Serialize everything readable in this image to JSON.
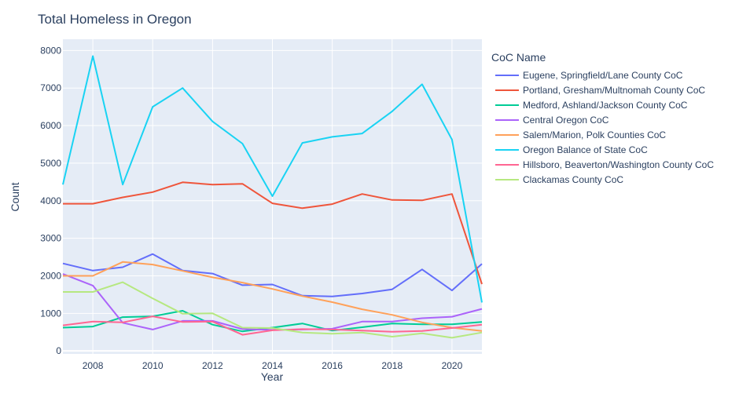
{
  "chart_data": {
    "type": "line",
    "title": "Total Homeless in Oregon",
    "xlabel": "Year",
    "ylabel": "Count",
    "legend_title": "CoC Name",
    "legend_position": "right",
    "grid": true,
    "xlim": [
      2007,
      2021
    ],
    "ylim": [
      -80,
      8300
    ],
    "x_ticks": [
      2008,
      2010,
      2012,
      2014,
      2016,
      2018,
      2020
    ],
    "y_ticks": [
      0,
      1000,
      2000,
      3000,
      4000,
      5000,
      6000,
      7000,
      8000
    ],
    "x": [
      2007,
      2008,
      2009,
      2010,
      2011,
      2012,
      2013,
      2014,
      2015,
      2016,
      2017,
      2018,
      2019,
      2020,
      2021
    ],
    "series": [
      {
        "name": "Eugene, Springfield/Lane County CoC",
        "color": "#636efa",
        "values": [
          2330,
          2140,
          2230,
          2580,
          2140,
          2060,
          1750,
          1770,
          1470,
          1450,
          1530,
          1640,
          2170,
          1610,
          2320
        ]
      },
      {
        "name": "Portland, Gresham/Multnomah County CoC",
        "color": "#ef553b",
        "values": [
          3920,
          3920,
          4090,
          4230,
          4490,
          4430,
          4450,
          3930,
          3800,
          3910,
          4180,
          4020,
          4010,
          4180,
          1780
        ]
      },
      {
        "name": "Medford, Ashland/Jackson County CoC",
        "color": "#00cc96",
        "values": [
          620,
          650,
          900,
          920,
          1070,
          700,
          520,
          620,
          730,
          540,
          630,
          730,
          710,
          710,
          770
        ]
      },
      {
        "name": "Central Oregon CoC",
        "color": "#ab63fa",
        "values": [
          2050,
          1740,
          750,
          570,
          800,
          800,
          580,
          560,
          570,
          590,
          780,
          780,
          870,
          910,
          1120
        ]
      },
      {
        "name": "Salem/Marion, Polk Counties CoC",
        "color": "#ffa15a",
        "values": [
          2000,
          2000,
          2370,
          2300,
          2130,
          1960,
          1820,
          1650,
          1460,
          1300,
          1110,
          960,
          760,
          620,
          530
        ]
      },
      {
        "name": "Oregon Balance of State CoC",
        "color": "#19d3f3",
        "values": [
          4430,
          7850,
          4430,
          6500,
          7000,
          6110,
          5520,
          4120,
          5540,
          5700,
          5790,
          6380,
          7100,
          5630,
          1290
        ]
      },
      {
        "name": "Hillsboro, Beaverton/Washington County CoC",
        "color": "#ff6692",
        "values": [
          680,
          780,
          760,
          920,
          770,
          780,
          430,
          550,
          580,
          570,
          540,
          510,
          530,
          610,
          700
        ]
      },
      {
        "name": "Clackamas County CoC",
        "color": "#b6e880",
        "values": [
          1570,
          1570,
          1830,
          1400,
          990,
          1000,
          620,
          610,
          490,
          460,
          490,
          380,
          470,
          350,
          490
        ]
      }
    ]
  }
}
